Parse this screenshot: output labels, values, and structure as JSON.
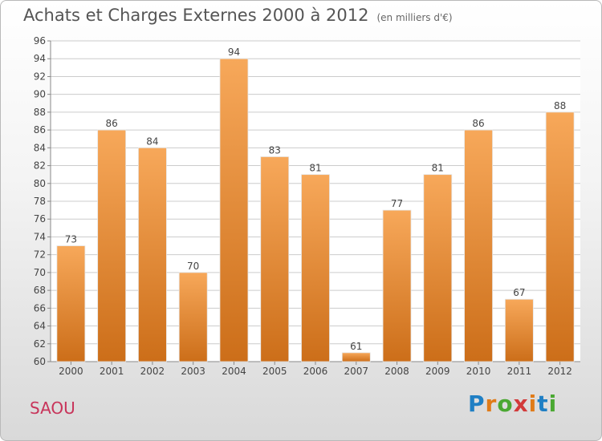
{
  "header": {
    "title": "Achats et Charges Externes 2000 à 2012",
    "subtitle": "(en milliers d'€)"
  },
  "commune_name": "SAOU",
  "logo": {
    "text": "Proxiti",
    "letter_colors": [
      "#1f7fc4",
      "#e07b18",
      "#4aa832",
      "#d23a3a",
      "#e07b18",
      "#1f7fc4",
      "#4aa832"
    ]
  },
  "colors": {
    "bar_light": "#f7a85a",
    "bar_dark": "#cc6e19",
    "grid": "#cccccc",
    "text": "#444444"
  },
  "chart_data": {
    "type": "bar",
    "categories": [
      "2000",
      "2001",
      "2002",
      "2003",
      "2004",
      "2005",
      "2006",
      "2007",
      "2008",
      "2009",
      "2010",
      "2011",
      "2012"
    ],
    "values": [
      73,
      86,
      84,
      70,
      94,
      83,
      81,
      61,
      77,
      81,
      86,
      67,
      88
    ],
    "title": "Achats et Charges Externes 2000 à 2012",
    "subtitle": "(en milliers d'€)",
    "xlabel": "",
    "ylabel": "",
    "ylim": [
      60,
      96
    ],
    "yticks": [
      60,
      62,
      64,
      66,
      68,
      70,
      72,
      74,
      76,
      78,
      80,
      82,
      84,
      86,
      88,
      90,
      92,
      94,
      96
    ],
    "grid": true,
    "data_labels": true
  }
}
